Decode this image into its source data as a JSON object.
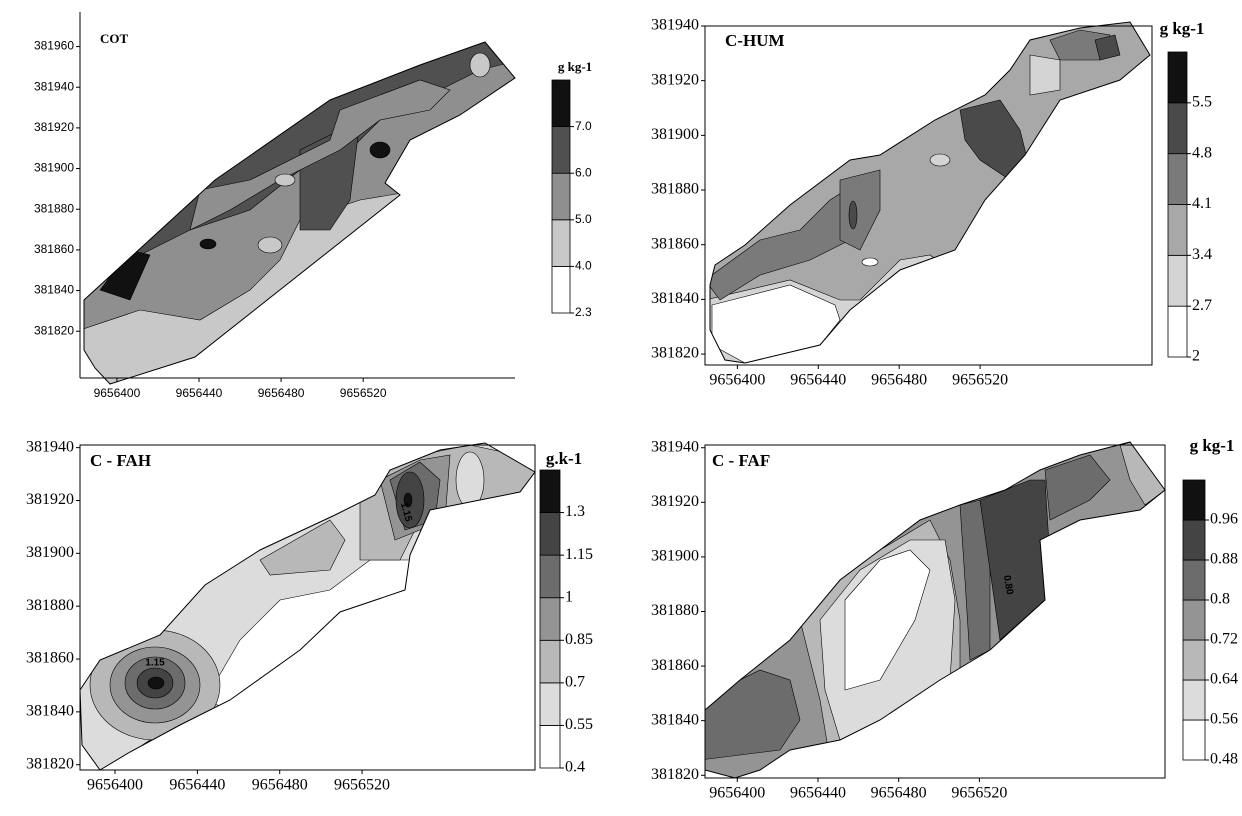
{
  "chart_data": [
    {
      "type": "contour",
      "title": "COT",
      "colorbar_title": "g kg-1",
      "xlim": [
        9656382,
        9656594
      ],
      "ylim": [
        381797,
        381977
      ],
      "xticks": [
        9656400,
        9656440,
        9656480,
        9656520
      ],
      "yticks": [
        381820,
        381840,
        381860,
        381880,
        381900,
        381920,
        381940,
        381960
      ],
      "levels": [
        2.3,
        {
          "value": 4,
          "label": "4.0"
        },
        {
          "value": 5,
          "label": "5.0"
        },
        {
          "value": 6,
          "label": "6.0"
        },
        {
          "value": 7,
          "label": "7.0"
        }
      ],
      "colors": [
        "#ffffff",
        "#c8c8c8",
        "#8f8f8f",
        "#505050",
        "#111111"
      ]
    },
    {
      "type": "contour",
      "title": "C-HUM",
      "colorbar_title": "g kg-1",
      "xlim": [
        9656384,
        9656605
      ],
      "ylim": [
        381816,
        381940
      ],
      "xticks": [
        9656400,
        9656440,
        9656480,
        9656520
      ],
      "yticks": [
        381820,
        381840,
        381860,
        381880,
        381900,
        381920,
        381940
      ],
      "levels": [
        2,
        2.7,
        3.4,
        4.1,
        4.8,
        5.5
      ],
      "colors": [
        "#ffffff",
        "#d4d4d4",
        "#a8a8a8",
        "#7a7a7a",
        "#4a4a4a",
        "#111111"
      ]
    },
    {
      "type": "contour",
      "title": "C - FAH",
      "colorbar_title": "g.k-1",
      "xlim": [
        9656383,
        9656604
      ],
      "ylim": [
        381818,
        381941
      ],
      "xticks": [
        9656400,
        9656440,
        9656480,
        9656520
      ],
      "yticks": [
        381820,
        381840,
        381860,
        381880,
        381900,
        381920,
        381940
      ],
      "levels": [
        0.4,
        0.55,
        0.7,
        0.85,
        1,
        1.15,
        1.3
      ],
      "colors": [
        "#ffffff",
        "#dcdcdc",
        "#b8b8b8",
        "#949494",
        "#6c6c6c",
        "#444444",
        "#111111"
      ],
      "annotations": [
        "1.15",
        "1.15"
      ]
    },
    {
      "type": "contour",
      "title": "C - FAF",
      "colorbar_title": "g kg-1",
      "xlim": [
        9656384,
        9656612
      ],
      "ylim": [
        381819,
        381941
      ],
      "xticks": [
        9656400,
        9656440,
        9656480,
        9656520
      ],
      "yticks": [
        381820,
        381840,
        381860,
        381880,
        381900,
        381920,
        381940
      ],
      "levels": [
        0.48,
        0.56,
        0.64,
        0.72,
        0.8,
        0.88,
        0.96
      ],
      "colors": [
        "#ffffff",
        "#dcdcdc",
        "#b8b8b8",
        "#949494",
        "#6c6c6c",
        "#444444",
        "#111111"
      ],
      "annotations": [
        "0.80"
      ]
    }
  ]
}
